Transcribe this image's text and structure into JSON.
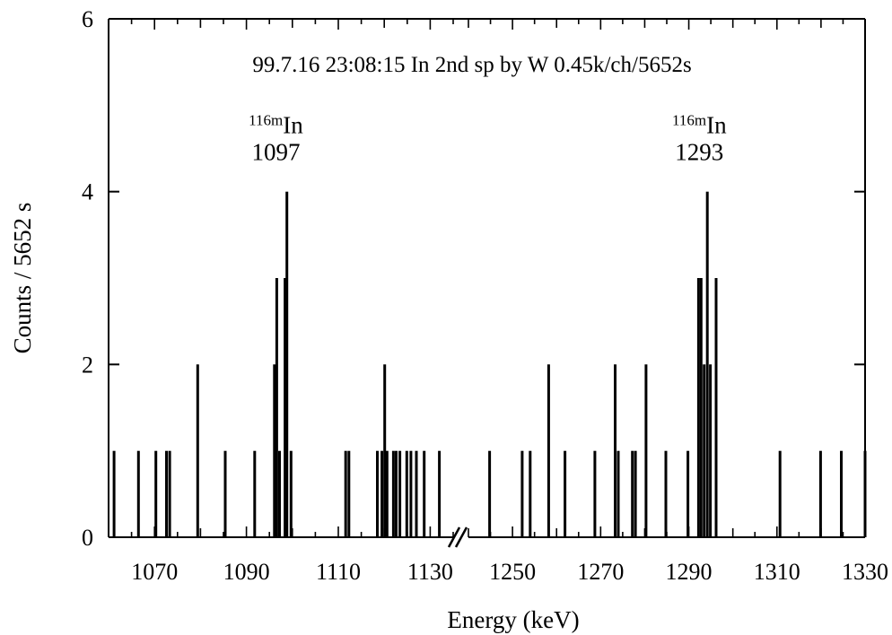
{
  "chart_data": {
    "type": "bar",
    "title": "99.7.16 23:08:15 In 2nd sp by W 0.45k/ch/5652s",
    "xlabel": "Energy (keV)",
    "ylabel": "Counts / 5652 s",
    "ylim": [
      0,
      6
    ],
    "yticks": [
      "0",
      "2",
      "4",
      "6"
    ],
    "grid": false,
    "axis_break": {
      "from": 1135,
      "to": 1240
    },
    "segments": [
      {
        "xlim": [
          1060,
          1135
        ],
        "xticks": [
          1070,
          1090,
          1110,
          1130
        ]
      },
      {
        "xlim": [
          1240,
          1330
        ],
        "xticks": [
          1250,
          1270,
          1290,
          1310,
          1330
        ]
      }
    ],
    "series": [
      {
        "values": [
          [
            1061.2,
            1
          ],
          [
            1066.5,
            1
          ],
          [
            1070.3,
            1
          ],
          [
            1072.6,
            1
          ],
          [
            1073.3,
            1
          ],
          [
            1079.4,
            2
          ],
          [
            1085.4,
            1
          ],
          [
            1091.8,
            1
          ],
          [
            1096.1,
            2
          ],
          [
            1096.6,
            3
          ],
          [
            1097.2,
            1
          ],
          [
            1098.4,
            3
          ],
          [
            1098.8,
            4
          ],
          [
            1099.7,
            1
          ],
          [
            1111.6,
            1
          ],
          [
            1112.3,
            1
          ],
          [
            1118.5,
            1
          ],
          [
            1119.5,
            1
          ],
          [
            1120.1,
            2
          ],
          [
            1120.6,
            1
          ],
          [
            1122.0,
            1
          ],
          [
            1122.6,
            1
          ],
          [
            1123.4,
            1
          ],
          [
            1124.9,
            1
          ],
          [
            1125.8,
            1
          ],
          [
            1127.0,
            1
          ],
          [
            1128.7,
            1
          ],
          [
            1132.0,
            1
          ],
          [
            1244.8,
            1
          ],
          [
            1252.2,
            1
          ],
          [
            1254.0,
            1
          ],
          [
            1258.2,
            2
          ],
          [
            1261.9,
            1
          ],
          [
            1268.7,
            1
          ],
          [
            1273.3,
            2
          ],
          [
            1274.0,
            1
          ],
          [
            1277.2,
            1
          ],
          [
            1277.9,
            1
          ],
          [
            1280.3,
            2
          ],
          [
            1284.8,
            1
          ],
          [
            1289.8,
            1
          ],
          [
            1292.2,
            3
          ],
          [
            1292.8,
            3
          ],
          [
            1293.5,
            2
          ],
          [
            1294.2,
            4
          ],
          [
            1294.9,
            2
          ],
          [
            1296.2,
            3
          ],
          [
            1310.7,
            1
          ],
          [
            1319.9,
            1
          ],
          [
            1324.6,
            1
          ],
          [
            1330.0,
            1
          ]
        ]
      }
    ],
    "annotations": [
      {
        "sup": "116m",
        "text": "In",
        "value": "1097",
        "x": 1097,
        "y": 4.55
      },
      {
        "sup": "116m",
        "text": "In",
        "value": "1293",
        "x": 1293,
        "y": 4.55
      }
    ]
  }
}
